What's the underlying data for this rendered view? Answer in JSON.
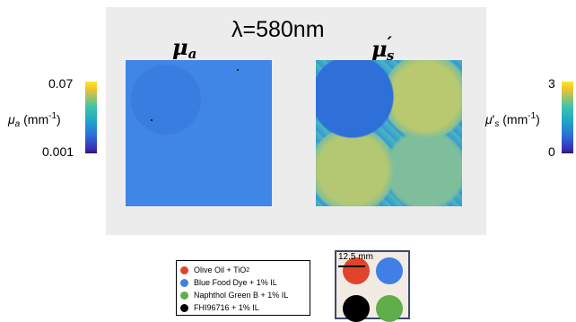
{
  "header": {
    "mu_a_symbol": "μ",
    "mu_a_sub": "a",
    "wavelength": "λ=580nm",
    "mu_s_symbol": "μ",
    "mu_s_prime": "′",
    "mu_s_sub": "s"
  },
  "colorbar_left": {
    "max": "0.07",
    "min": "0.001",
    "label_symbol": "μ",
    "label_sub": "a",
    "label_unit": " (mm",
    "label_exp": "-1",
    "label_close": ")"
  },
  "colorbar_right": {
    "max": "3",
    "min": "0",
    "label_symbol": "μ",
    "label_prime": "'",
    "label_sub": "s",
    "label_unit": " (mm",
    "label_exp": "-1",
    "label_close": ")"
  },
  "legend": {
    "items": [
      {
        "label": "Olive Oil + TiO",
        "sub": "2",
        "color": "#e0452b"
      },
      {
        "label": "Blue Food Dye + 1% IL",
        "sub": "",
        "color": "#3f7fe6"
      },
      {
        "label": "Naphthol Green B + 1% IL",
        "sub": "",
        "color": "#5fae4a"
      },
      {
        "label": "FHI96716 + 1% IL",
        "sub": "",
        "color": "#000000"
      }
    ]
  },
  "phantom": {
    "scale_label": "12.5 mm",
    "colors": {
      "top_left": "#e0452b",
      "top_right": "#3f7fe6",
      "bottom_left": "#000000",
      "bottom_right": "#5fae4a"
    }
  }
}
